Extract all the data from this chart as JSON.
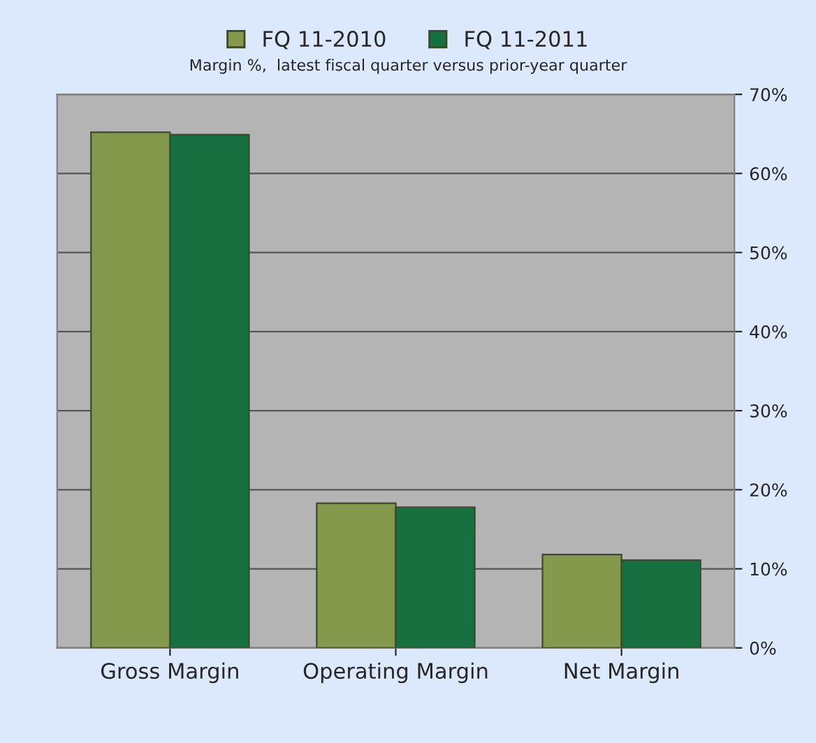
{
  "chart_data": {
    "type": "bar",
    "title": "Margin %,  latest fiscal quarter versus prior-year quarter",
    "categories": [
      "Gross Margin",
      "Operating Margin",
      "Net Margin"
    ],
    "series": [
      {
        "name": "FQ 11-2010",
        "color": "#84994c",
        "values": [
          65.2,
          18.3,
          11.8
        ]
      },
      {
        "name": "FQ 11-2011",
        "color": "#167040",
        "values": [
          64.9,
          17.8,
          11.1
        ]
      }
    ],
    "ylim": [
      0,
      70
    ],
    "yticks": [
      {
        "value": 0,
        "label": "0%"
      },
      {
        "value": 10,
        "label": "10%"
      },
      {
        "value": 20,
        "label": "20%"
      },
      {
        "value": 30,
        "label": "30%"
      },
      {
        "value": 40,
        "label": "40%"
      },
      {
        "value": 50,
        "label": "50%"
      },
      {
        "value": 60,
        "label": "60%"
      },
      {
        "value": 70,
        "label": "70%"
      }
    ],
    "grid": "y",
    "legend": "top"
  }
}
